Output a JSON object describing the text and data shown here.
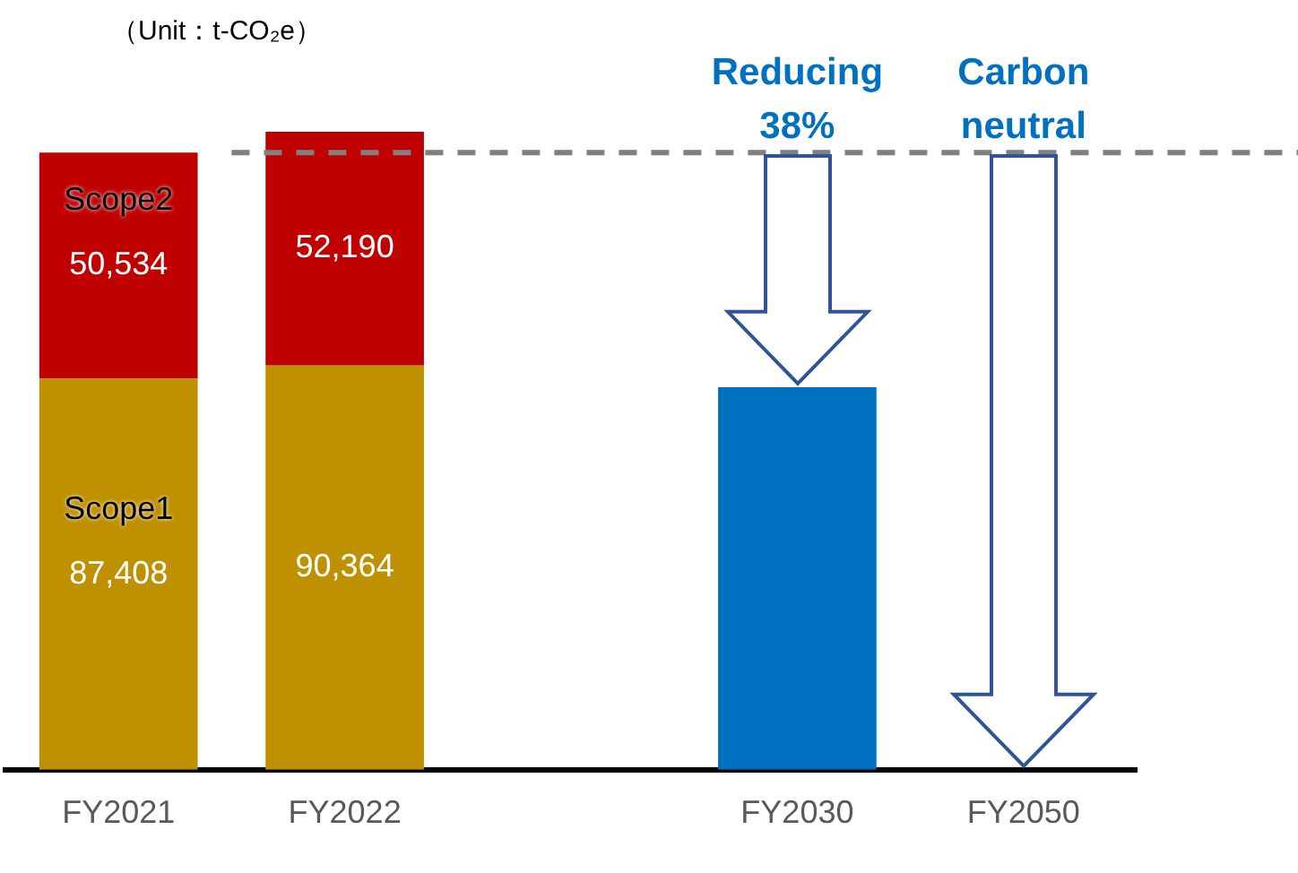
{
  "chart_data": {
    "type": "bar",
    "stacked": true,
    "categories": [
      "FY2021",
      "FY2022",
      null,
      "FY2030",
      "FY2050"
    ],
    "series": [
      {
        "name": "Scope1",
        "color": "#bf9000",
        "values": [
          87408,
          90364,
          null,
          null,
          null
        ],
        "value_labels": [
          "87,408",
          "90,364",
          null,
          null,
          null
        ]
      },
      {
        "name": "Scope2",
        "color": "#c00000",
        "values": [
          50534,
          52190,
          null,
          null,
          null
        ],
        "value_labels": [
          "50,534",
          "52,190",
          null,
          null,
          null
        ]
      },
      {
        "color": "#0070c0",
        "values": [
          null,
          null,
          null,
          85500,
          null
        ]
      }
    ],
    "tick_labels": "x",
    "legend": false,
    "grid": false,
    "ref_lines": [
      {
        "axis": "y",
        "value": 137942,
        "color": "#808080",
        "line_style": "dashed"
      }
    ],
    "annotations": [
      "（Unit：t-CO₂e）",
      {
        "text": "Reducing 38%",
        "x": "FY2030",
        "y": 137942
      },
      {
        "text": "Carbon neutral",
        "x": "FY2050",
        "y": 137942
      }
    ]
  }
}
